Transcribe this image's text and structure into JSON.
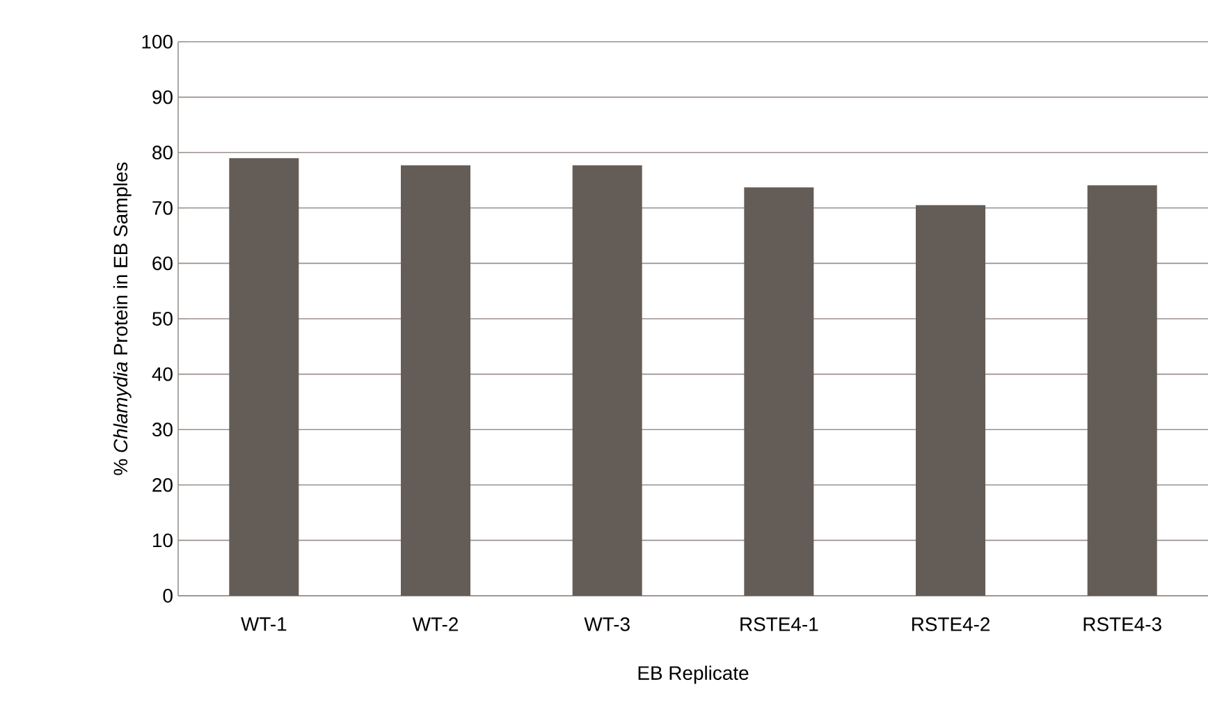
{
  "chart_data": {
    "type": "bar",
    "xlabel": "EB Replicate",
    "ylabel": "% *Chlamydia* Protein in EB Samples",
    "categories": [
      "WT-1",
      "WT-2",
      "WT-3",
      "RSTE4-1",
      "RSTE4-2",
      "RSTE4-3"
    ],
    "values": [
      79,
      77.7,
      77.7,
      73.7,
      70.5,
      74.1
    ],
    "color": "#645c56",
    "ylim": [
      0,
      100
    ],
    "yticks": [
      0,
      10,
      20,
      30,
      40,
      50,
      60,
      70,
      80,
      90,
      100
    ],
    "grid": "y"
  }
}
